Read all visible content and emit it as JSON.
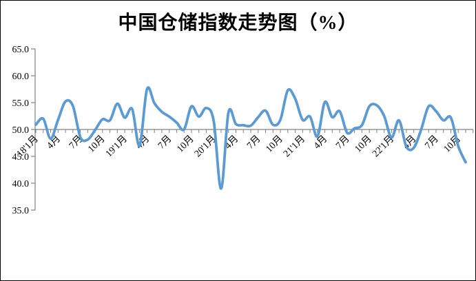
{
  "page": {
    "background": "#ffffff",
    "border_color": "#000000"
  },
  "chart_data": {
    "type": "line",
    "title": "中国仓储指数走势图（%）",
    "unit": "%",
    "legend": false,
    "grid": false,
    "line_color": "#5B9BD5",
    "axis_color": "#808080",
    "text_color": "#000000",
    "smooth": true,
    "categories": [
      "2018-01",
      "2018-02",
      "2018-03",
      "2018-04",
      "2018-05",
      "2018-06",
      "2018-07",
      "2018-08",
      "2018-09",
      "2018-10",
      "2018-11",
      "2018-12",
      "2019-01",
      "2019-02",
      "2019-03",
      "2019-04",
      "2019-05",
      "2019-06",
      "2019-07",
      "2019-08",
      "2019-09",
      "2019-10",
      "2019-11",
      "2019-12",
      "2020-01",
      "2020-02",
      "2020-03",
      "2020-04",
      "2020-05",
      "2020-06",
      "2020-07",
      "2020-08",
      "2020-09",
      "2020-10",
      "2020-11",
      "2020-12",
      "2021-01",
      "2021-02",
      "2021-03",
      "2021-04",
      "2021-05",
      "2021-06",
      "2021-07",
      "2021-08",
      "2021-09",
      "2021-10",
      "2021-11",
      "2021-12",
      "2022-01",
      "2022-02",
      "2022-03",
      "2022-04",
      "2022-05",
      "2022-06",
      "2022-07",
      "2022-08",
      "2022-09",
      "2022-10",
      "2022-11"
    ],
    "series": [
      {
        "name": "中国仓储指数",
        "values": [
          50.9,
          52.0,
          48.3,
          51.8,
          55.2,
          54.4,
          48.6,
          48.1,
          49.9,
          51.9,
          51.7,
          54.8,
          52.2,
          53.8,
          47.0,
          57.5,
          54.9,
          53.3,
          52.4,
          51.3,
          50.0,
          54.3,
          52.4,
          54.0,
          51.6,
          39.0,
          53.2,
          51.0,
          50.8,
          50.7,
          52.3,
          53.5,
          50.9,
          51.8,
          57.3,
          55.7,
          51.8,
          52.4,
          48.7,
          55.1,
          52.3,
          53.4,
          49.4,
          50.2,
          50.8,
          54.3,
          54.5,
          52.5,
          48.5,
          51.7,
          46.8,
          46.6,
          50.0,
          54.3,
          53.4,
          51.7,
          52.2,
          46.9,
          43.9
        ]
      }
    ],
    "x_axis": {
      "tick_labels": [
        "18'1月",
        "4月",
        "7月",
        "10月",
        "19'1月",
        "4月",
        "7月",
        "10月",
        "20'1月",
        "4月",
        "7月",
        "10月",
        "21'1月",
        "4月",
        "7月",
        "10月",
        "22'1月",
        "4月",
        "7月",
        "10月"
      ],
      "label_every_n_points": 3,
      "minor_tick_every_point": true,
      "label_rotation_deg": -45
    },
    "y_axis": {
      "min": 35,
      "max": 65,
      "step": 5,
      "tick_labels": [
        "65.0",
        "60.0",
        "55.0",
        "50.0",
        "45.0",
        "40.0",
        "35.0"
      ],
      "category_axis_crosses_at": 50
    }
  }
}
